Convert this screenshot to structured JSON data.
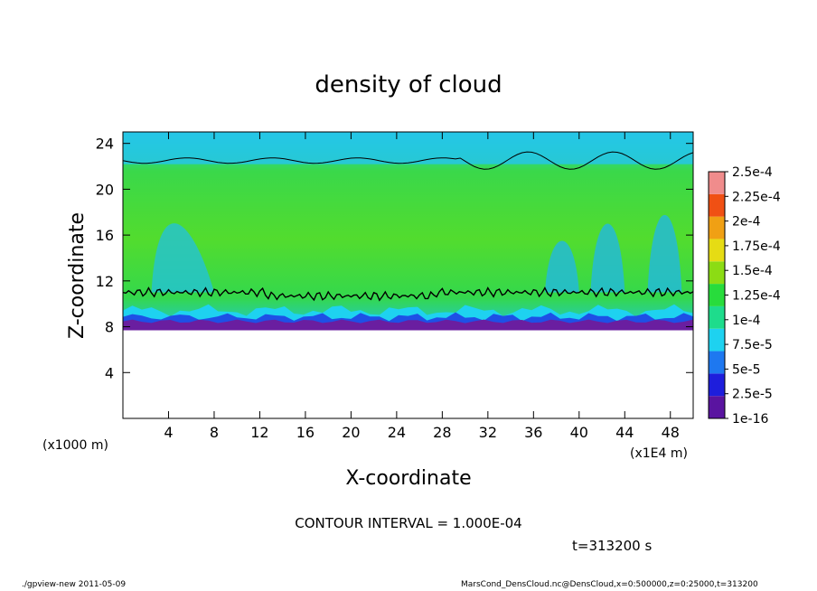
{
  "chart_data": {
    "type": "heatmap",
    "title": "density of cloud",
    "xlabel": "X-coordinate",
    "ylabel": "Z-coordinate",
    "x_unit_left": "(x1000 m)",
    "x_unit_right": "(x1E4 m)",
    "xlim": [
      0,
      50
    ],
    "ylim": [
      0,
      25
    ],
    "x_ticks": [
      4,
      8,
      12,
      16,
      20,
      24,
      28,
      32,
      36,
      40,
      44,
      48
    ],
    "y_ticks": [
      4,
      8,
      12,
      16,
      20,
      24
    ],
    "colorbar": {
      "labels": [
        "1e-16",
        "2.5e-5",
        "5e-5",
        "7.5e-5",
        "1e-4",
        "1.25e-4",
        "1.5e-4",
        "1.75e-4",
        "2e-4",
        "2.25e-4",
        "2.5e-4"
      ],
      "colors": [
        "#5a14a0",
        "#1e1edc",
        "#1e78f0",
        "#1ed2f0",
        "#1edc8c",
        "#28dc3c",
        "#8cdc14",
        "#e6dc14",
        "#f0a014",
        "#f05014",
        "#f08c8c"
      ]
    },
    "cloud_layer": {
      "base_z": 8,
      "main_top_z": 22.5,
      "lower_contour_z": 11
    },
    "contour_interval": "CONTOUR INTERVAL = 1.000E-04",
    "time": "t=313200 s"
  },
  "footer": {
    "left": "./gpview-new  2011-05-09",
    "right": "MarsCond_DensCloud.nc@DensCloud,x=0:500000,z=0:25000,t=313200"
  }
}
